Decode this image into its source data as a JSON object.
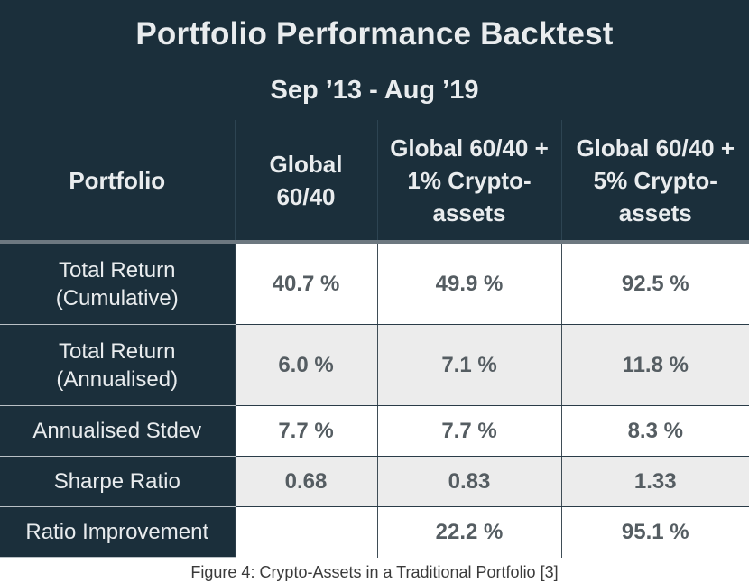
{
  "title": "Portfolio Performance Backtest",
  "subtitle": "Sep ’13 - Aug ’19",
  "columns": [
    "Portfolio",
    "Global 60/40",
    "Global 60/40 + 1% Crypto-assets",
    "Global 60/40 + 5% Crypto-assets"
  ],
  "rows": [
    {
      "label": "Total Return (Cumulative)",
      "values": [
        "40.7 %",
        "49.9 %",
        "92.5 %"
      ]
    },
    {
      "label": "Total Return (Annualised)",
      "values": [
        "6.0 %",
        "7.1 %",
        "11.8 %"
      ]
    },
    {
      "label": "Annualised Stdev",
      "values": [
        "7.7 %",
        "7.7 %",
        "8.3 %"
      ]
    },
    {
      "label": "Sharpe Ratio",
      "values": [
        "0.68",
        "0.83",
        "1.33"
      ]
    },
    {
      "label": "Ratio Improvement",
      "values": [
        "",
        "22.2 %",
        "95.1 %"
      ]
    }
  ],
  "caption": "Figure 4: Crypto-Assets in a Traditional Portfolio [3]"
}
